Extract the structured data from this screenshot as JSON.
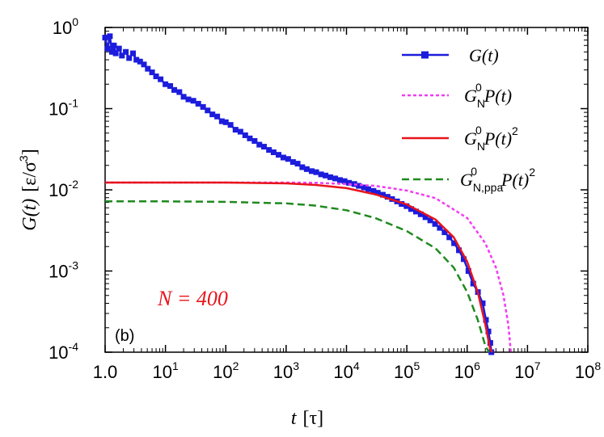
{
  "chart_data": {
    "type": "line",
    "xscale": "log",
    "yscale": "log",
    "xlim": [
      1,
      100000000
    ],
    "ylim": [
      0.0001,
      1
    ],
    "x_ticks": [
      "10^0",
      "10^1",
      "10^2",
      "10^3",
      "10^4",
      "10^5",
      "10^6",
      "10^7",
      "10^8"
    ],
    "y_ticks": [
      "10^-4",
      "10^-3",
      "10^-2",
      "10^-1",
      "10^0"
    ],
    "x_tick_labels": [
      {
        "base": "1.0",
        "exp": ""
      },
      {
        "base": "10",
        "exp": "1"
      },
      {
        "base": "10",
        "exp": "2"
      },
      {
        "base": "10",
        "exp": "3"
      },
      {
        "base": "10",
        "exp": "4"
      },
      {
        "base": "10",
        "exp": "5"
      },
      {
        "base": "10",
        "exp": "6"
      },
      {
        "base": "10",
        "exp": "7"
      },
      {
        "base": "10",
        "exp": "8"
      }
    ],
    "y_tick_labels": [
      {
        "base": "10",
        "exp": "-4"
      },
      {
        "base": "10",
        "exp": "-3"
      },
      {
        "base": "10",
        "exp": "-2"
      },
      {
        "base": "10",
        "exp": "-1"
      },
      {
        "base": "10",
        "exp": "0"
      }
    ],
    "xlabel": {
      "var": "t",
      "unit": "[τ]"
    },
    "ylabel": {
      "var": "G(t)",
      "unit": "[ε/σ",
      "unit_exp": "3",
      "unit_close": "]"
    },
    "panel_label": "(b)",
    "annotation": {
      "text": "N = 400",
      "color": "#e8141b"
    },
    "legend_position": "top-right",
    "series": [
      {
        "name": "G(t)",
        "legend": {
          "main": "G(t)",
          "sub": "",
          "sup": ""
        },
        "color": "#1c1cdc",
        "style": "solid-markers",
        "x": [
          1.0,
          1.1,
          1.2,
          1.3,
          1.4,
          1.5,
          1.7,
          1.9,
          2.2,
          2.5,
          2.9,
          3.3,
          3.8,
          4.4,
          5.1,
          6.0,
          7.0,
          8.3,
          10,
          12,
          14,
          17,
          20,
          24,
          29,
          35,
          42,
          50,
          60,
          72,
          86,
          100,
          120,
          145,
          175,
          210,
          250,
          300,
          360,
          430,
          520,
          620,
          750,
          900,
          1080,
          1300,
          1550,
          1850,
          2200,
          2650,
          3150,
          3800,
          4500,
          5400,
          6500,
          7800,
          9300,
          11000,
          13500,
          16000,
          19500,
          23000,
          28000,
          33000,
          40000,
          48000,
          57000,
          69000,
          82000,
          99000,
          118000,
          142000,
          170000,
          204000,
          245000,
          294000,
          352000,
          423000,
          507000,
          608000,
          730000,
          876000,
          1050000,
          1260000,
          1510000,
          1810000,
          2050000,
          2250000,
          2420000,
          2520000
        ],
        "values": [
          0.75,
          0.55,
          0.78,
          0.5,
          0.6,
          0.48,
          0.55,
          0.45,
          0.5,
          0.42,
          0.48,
          0.4,
          0.38,
          0.35,
          0.31,
          0.28,
          0.25,
          0.23,
          0.2,
          0.19,
          0.17,
          0.16,
          0.14,
          0.13,
          0.125,
          0.115,
          0.105,
          0.095,
          0.085,
          0.08,
          0.07,
          0.068,
          0.063,
          0.055,
          0.052,
          0.047,
          0.043,
          0.04,
          0.036,
          0.034,
          0.031,
          0.029,
          0.027,
          0.025,
          0.024,
          0.022,
          0.021,
          0.019,
          0.018,
          0.017,
          0.0165,
          0.0155,
          0.015,
          0.0143,
          0.0138,
          0.0132,
          0.0128,
          0.0122,
          0.0118,
          0.0112,
          0.0107,
          0.0102,
          0.0097,
          0.0092,
          0.0087,
          0.0082,
          0.0077,
          0.0072,
          0.0067,
          0.0063,
          0.0058,
          0.0054,
          0.005,
          0.0046,
          0.0042,
          0.0038,
          0.0034,
          0.003,
          0.0026,
          0.0022,
          0.0018,
          0.0014,
          0.001,
          0.0007,
          0.00055,
          0.0004,
          0.00025,
          0.00018,
          0.00013,
          0.0001
        ]
      },
      {
        "name": "G_N^0 P(t)",
        "legend": {
          "main": "G",
          "sub": "N",
          "sup": "0",
          "tail": "P(t)"
        },
        "color": "#f23cf2",
        "style": "dotted",
        "x": [
          1,
          10,
          100,
          1000,
          3000,
          10000,
          30000,
          100000,
          300000,
          1000000,
          2000000,
          3000000,
          4000000,
          4800000,
          5300000
        ],
        "values": [
          0.0123,
          0.0123,
          0.0123,
          0.0123,
          0.0122,
          0.0118,
          0.0112,
          0.0098,
          0.0079,
          0.0045,
          0.0022,
          0.0011,
          0.0005,
          0.00022,
          0.0001
        ]
      },
      {
        "name": "G_N^0 P(t)^2",
        "legend": {
          "main": "G",
          "sub": "N",
          "sup": "0",
          "tail": "P(t)",
          "tail_sup": "2"
        },
        "color": "#e8141b",
        "style": "solid",
        "x": [
          1,
          10,
          100,
          1000,
          3000,
          10000,
          30000,
          100000,
          300000,
          600000,
          1000000,
          1500000,
          2000000,
          2400000,
          2600000
        ],
        "values": [
          0.0123,
          0.0123,
          0.0123,
          0.012,
          0.0115,
          0.0105,
          0.0088,
          0.0066,
          0.0043,
          0.0026,
          0.0013,
          0.00055,
          0.00022,
          0.00011,
          0.0001
        ]
      },
      {
        "name": "G_N,ppa^0 P(t)^2",
        "legend": {
          "main": "G",
          "sub": "N,ppa",
          "sup": "0",
          "tail": "P(t)",
          "tail_sup": "2"
        },
        "color": "#1f8a1f",
        "style": "dashed",
        "x": [
          1,
          10,
          100,
          1000,
          3000,
          10000,
          30000,
          100000,
          300000,
          600000,
          1000000,
          1500000,
          2000000,
          2300000
        ],
        "values": [
          0.0072,
          0.0072,
          0.0071,
          0.0068,
          0.0064,
          0.0056,
          0.0045,
          0.0031,
          0.0019,
          0.0011,
          0.00055,
          0.00025,
          0.00012,
          0.0001
        ]
      }
    ]
  }
}
